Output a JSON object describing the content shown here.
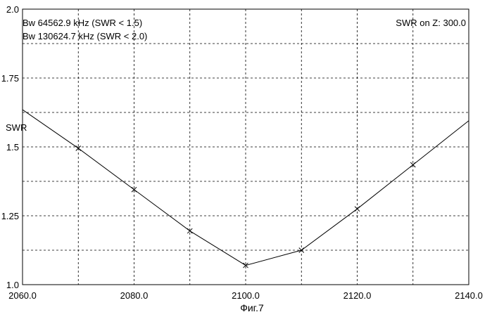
{
  "chart_data": {
    "type": "line",
    "title": "",
    "xlabel": "",
    "ylabel": "SWR",
    "caption": "Фиг.7",
    "xlim": [
      2060.0,
      2140.0
    ],
    "ylim": [
      1.0,
      2.0
    ],
    "grid": true,
    "x_ticks": [
      {
        "value": 2060,
        "label": "2060.0"
      },
      {
        "value": 2080,
        "label": "2080.0"
      },
      {
        "value": 2100,
        "label": "2100.0"
      },
      {
        "value": 2120,
        "label": "2120.0"
      },
      {
        "value": 2140,
        "label": "2140.0"
      }
    ],
    "y_ticks": [
      {
        "value": 1.0,
        "label": "1.0"
      },
      {
        "value": 1.25,
        "label": "1.25"
      },
      {
        "value": 1.5,
        "label": "1.5"
      },
      {
        "value": 1.75,
        "label": "1.75"
      },
      {
        "value": 2.0,
        "label": "2.0"
      }
    ],
    "annotations": [
      {
        "text": "Bw 64562.9 kHz (SWR < 1.5)",
        "position": "top-left"
      },
      {
        "text": "Bw 130624.7 kHz (SWR < 2.0)",
        "position": "top-left"
      },
      {
        "text": "SWR on Z: 300.0",
        "position": "top-right"
      }
    ],
    "series": [
      {
        "x": [
          2060,
          2070,
          2080,
          2090,
          2100,
          2110,
          2120,
          2130,
          2140
        ],
        "y": [
          1.635,
          1.495,
          1.345,
          1.195,
          1.07,
          1.125,
          1.275,
          1.435,
          1.595
        ],
        "markers": [
          false,
          true,
          true,
          true,
          true,
          true,
          true,
          true,
          false
        ]
      }
    ]
  }
}
